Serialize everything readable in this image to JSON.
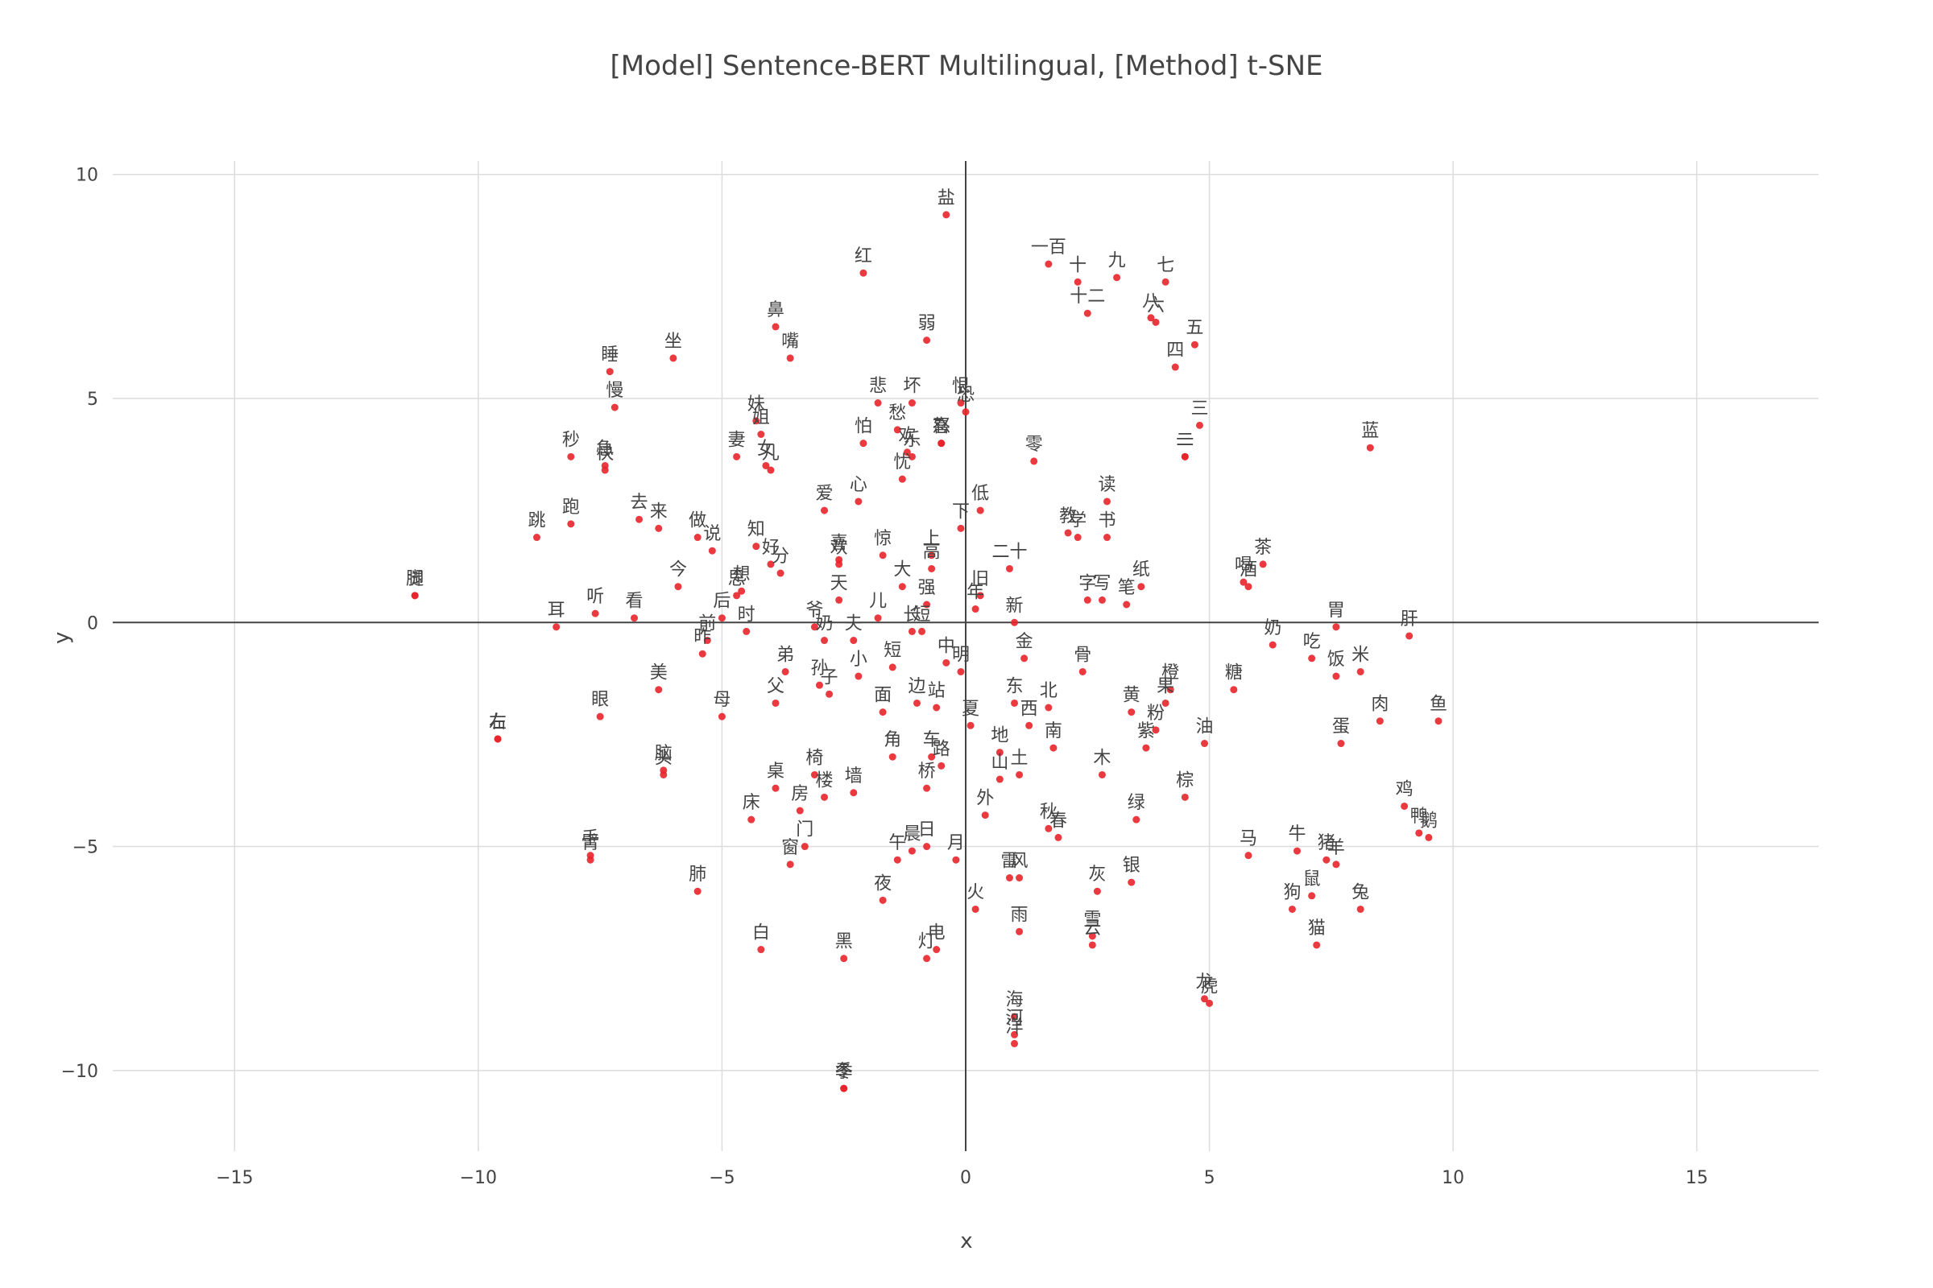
{
  "chart_data": {
    "type": "scatter",
    "title": "[Model] Sentence-BERT Multilingual, [Method] t-SNE",
    "xlabel": "x",
    "ylabel": "y",
    "xlim": [
      -17.5,
      17.5
    ],
    "ylim": [
      -11.8,
      10.3
    ],
    "xticks": [
      -15,
      -10,
      -5,
      0,
      5,
      10,
      15
    ],
    "yticks": [
      -10,
      -5,
      0,
      5,
      10
    ],
    "xtick_labels": [
      "−15",
      "−10",
      "−5",
      "0",
      "5",
      "10",
      "15"
    ],
    "ytick_labels": [
      "−10",
      "−5",
      "0",
      "5",
      "10"
    ],
    "grid": true,
    "zero_lines": true,
    "marker_color": "#e8242a",
    "points": [
      {
        "label": "盐",
        "x": -0.4,
        "y": 9.1
      },
      {
        "label": "红",
        "x": -2.1,
        "y": 7.8
      },
      {
        "label": "一百",
        "x": 1.7,
        "y": 8.0
      },
      {
        "label": "十",
        "x": 2.3,
        "y": 7.6
      },
      {
        "label": "九",
        "x": 3.1,
        "y": 7.7
      },
      {
        "label": "七",
        "x": 4.1,
        "y": 7.6
      },
      {
        "label": "十二",
        "x": 2.5,
        "y": 6.9
      },
      {
        "label": "八",
        "x": 3.8,
        "y": 6.8
      },
      {
        "label": "六",
        "x": 3.9,
        "y": 6.7
      },
      {
        "label": "五",
        "x": 4.7,
        "y": 6.2
      },
      {
        "label": "四",
        "x": 4.3,
        "y": 5.7
      },
      {
        "label": "鼻",
        "x": -3.9,
        "y": 6.6
      },
      {
        "label": "嘴",
        "x": -3.6,
        "y": 5.9
      },
      {
        "label": "弱",
        "x": -0.8,
        "y": 6.3
      },
      {
        "label": "坐",
        "x": -6.0,
        "y": 5.9
      },
      {
        "label": "睡",
        "x": -7.3,
        "y": 5.6
      },
      {
        "label": "慢",
        "x": -7.2,
        "y": 4.8
      },
      {
        "label": "悲",
        "x": -1.8,
        "y": 4.9
      },
      {
        "label": "坏",
        "x": -1.1,
        "y": 4.9
      },
      {
        "label": "恨",
        "x": -0.1,
        "y": 4.9
      },
      {
        "label": "恐",
        "x": 0.0,
        "y": 4.7
      },
      {
        "label": "三",
        "x": 4.8,
        "y": 4.4
      },
      {
        "label": "妹",
        "x": -4.3,
        "y": 4.5
      },
      {
        "label": "姐",
        "x": -4.2,
        "y": 4.2
      },
      {
        "label": "愁",
        "x": -1.4,
        "y": 4.3
      },
      {
        "label": "喜",
        "x": -0.5,
        "y": 4.0
      },
      {
        "label": "怒",
        "x": -0.5,
        "y": 4.0
      },
      {
        "label": "二",
        "x": 4.5,
        "y": 3.7
      },
      {
        "label": "一",
        "x": 4.5,
        "y": 3.7
      },
      {
        "label": "蓝",
        "x": 8.3,
        "y": 3.9
      },
      {
        "label": "秒",
        "x": -8.1,
        "y": 3.7
      },
      {
        "label": "急",
        "x": -7.4,
        "y": 3.5
      },
      {
        "label": "快",
        "x": -7.4,
        "y": 3.4
      },
      {
        "label": "妻",
        "x": -4.7,
        "y": 3.7
      },
      {
        "label": "女",
        "x": -4.1,
        "y": 3.5
      },
      {
        "label": "儿",
        "x": -4.0,
        "y": 3.4
      },
      {
        "label": "怕",
        "x": -2.1,
        "y": 4.0
      },
      {
        "label": "欢",
        "x": -1.2,
        "y": 3.8
      },
      {
        "label": "乐",
        "x": -1.1,
        "y": 3.7
      },
      {
        "label": "忧",
        "x": -1.3,
        "y": 3.2
      },
      {
        "label": "零",
        "x": 1.4,
        "y": 3.6
      },
      {
        "label": "读",
        "x": 2.9,
        "y": 2.7
      },
      {
        "label": "跳",
        "x": -8.8,
        "y": 1.9
      },
      {
        "label": "跑",
        "x": -8.1,
        "y": 2.2
      },
      {
        "label": "去",
        "x": -6.7,
        "y": 2.3
      },
      {
        "label": "来",
        "x": -6.3,
        "y": 2.1
      },
      {
        "label": "做",
        "x": -5.5,
        "y": 1.9
      },
      {
        "label": "说",
        "x": -5.2,
        "y": 1.6
      },
      {
        "label": "爱",
        "x": -2.9,
        "y": 2.5
      },
      {
        "label": "心",
        "x": -2.2,
        "y": 2.7
      },
      {
        "label": "低",
        "x": 0.3,
        "y": 2.5
      },
      {
        "label": "下",
        "x": -0.1,
        "y": 2.1
      },
      {
        "label": "教",
        "x": 2.1,
        "y": 2.0
      },
      {
        "label": "学",
        "x": 2.3,
        "y": 1.9
      },
      {
        "label": "书",
        "x": 2.9,
        "y": 1.9
      },
      {
        "label": "知",
        "x": -4.3,
        "y": 1.7
      },
      {
        "label": "好",
        "x": -4.0,
        "y": 1.3
      },
      {
        "label": "分",
        "x": -3.8,
        "y": 1.1
      },
      {
        "label": "喜",
        "x": -2.6,
        "y": 1.4
      },
      {
        "label": "欢",
        "x": -2.6,
        "y": 1.3
      },
      {
        "label": "惊",
        "x": -1.7,
        "y": 1.5
      },
      {
        "label": "上",
        "x": -0.7,
        "y": 1.5
      },
      {
        "label": "高",
        "x": -0.7,
        "y": 1.2
      },
      {
        "label": "二十",
        "x": 0.9,
        "y": 1.2
      },
      {
        "label": "茶",
        "x": 6.1,
        "y": 1.3
      },
      {
        "label": "喝",
        "x": 5.7,
        "y": 0.9
      },
      {
        "label": "酒",
        "x": 5.8,
        "y": 0.8
      },
      {
        "label": "脚",
        "x": -11.3,
        "y": 0.6
      },
      {
        "label": "腿",
        "x": -11.3,
        "y": 0.6
      },
      {
        "label": "今",
        "x": -5.9,
        "y": 0.8
      },
      {
        "label": "想",
        "x": -4.6,
        "y": 0.7
      },
      {
        "label": "思",
        "x": -4.7,
        "y": 0.6
      },
      {
        "label": "天",
        "x": -2.6,
        "y": 0.5
      },
      {
        "label": "大",
        "x": -1.3,
        "y": 0.8
      },
      {
        "label": "旧",
        "x": 0.3,
        "y": 0.6
      },
      {
        "label": "纸",
        "x": 3.6,
        "y": 0.8
      },
      {
        "label": "字",
        "x": 2.5,
        "y": 0.5
      },
      {
        "label": "写",
        "x": 2.8,
        "y": 0.5
      },
      {
        "label": "笔",
        "x": 3.3,
        "y": 0.4
      },
      {
        "label": "强",
        "x": -0.8,
        "y": 0.4
      },
      {
        "label": "年",
        "x": 0.2,
        "y": 0.3
      },
      {
        "label": "耳",
        "x": -8.4,
        "y": -0.1
      },
      {
        "label": "听",
        "x": -7.6,
        "y": 0.2
      },
      {
        "label": "看",
        "x": -6.8,
        "y": 0.1
      },
      {
        "label": "后",
        "x": -5.0,
        "y": 0.1
      },
      {
        "label": "时",
        "x": -4.5,
        "y": -0.2
      },
      {
        "label": "儿",
        "x": -1.8,
        "y": 0.1
      },
      {
        "label": "长",
        "x": -1.1,
        "y": -0.2
      },
      {
        "label": "短",
        "x": -0.9,
        "y": -0.2
      },
      {
        "label": "新",
        "x": 1.0,
        "y": 0.0
      },
      {
        "label": "胃",
        "x": 7.6,
        "y": -0.1
      },
      {
        "label": "肝",
        "x": 9.1,
        "y": -0.3
      },
      {
        "label": "奶",
        "x": 6.3,
        "y": -0.5
      },
      {
        "label": "吃",
        "x": 7.1,
        "y": -0.8
      },
      {
        "label": "饭",
        "x": 7.6,
        "y": -1.2
      },
      {
        "label": "米",
        "x": 8.1,
        "y": -1.1
      },
      {
        "label": "爷",
        "x": -3.1,
        "y": -0.1
      },
      {
        "label": "奶",
        "x": -2.9,
        "y": -0.4
      },
      {
        "label": "夫",
        "x": -2.3,
        "y": -0.4
      },
      {
        "label": "前",
        "x": -5.3,
        "y": -0.4
      },
      {
        "label": "昨",
        "x": -5.4,
        "y": -0.7
      },
      {
        "label": "中",
        "x": -0.4,
        "y": -0.9
      },
      {
        "label": "明",
        "x": -0.1,
        "y": -1.1
      },
      {
        "label": "金",
        "x": 1.2,
        "y": -0.8
      },
      {
        "label": "骨",
        "x": 2.4,
        "y": -1.1
      },
      {
        "label": "弟",
        "x": -3.7,
        "y": -1.1
      },
      {
        "label": "孙",
        "x": -3.0,
        "y": -1.4
      },
      {
        "label": "子",
        "x": -2.8,
        "y": -1.6
      },
      {
        "label": "小",
        "x": -2.2,
        "y": -1.2
      },
      {
        "label": "短",
        "x": -1.5,
        "y": -1.0
      },
      {
        "label": "美",
        "x": -6.3,
        "y": -1.5
      },
      {
        "label": "父",
        "x": -3.9,
        "y": -1.8
      },
      {
        "label": "面",
        "x": -1.7,
        "y": -2.0
      },
      {
        "label": "边",
        "x": -1.0,
        "y": -1.8
      },
      {
        "label": "站",
        "x": -0.6,
        "y": -1.9
      },
      {
        "label": "夏",
        "x": 0.1,
        "y": -2.3
      },
      {
        "label": "东",
        "x": 1.0,
        "y": -1.8
      },
      {
        "label": "西",
        "x": 1.3,
        "y": -2.3
      },
      {
        "label": "北",
        "x": 1.7,
        "y": -1.9
      },
      {
        "label": "黄",
        "x": 3.4,
        "y": -2.0
      },
      {
        "label": "橙",
        "x": 4.2,
        "y": -1.5
      },
      {
        "label": "果",
        "x": 4.1,
        "y": -1.8
      },
      {
        "label": "粉",
        "x": 3.9,
        "y": -2.4
      },
      {
        "label": "糖",
        "x": 5.5,
        "y": -1.5
      },
      {
        "label": "肉",
        "x": 8.5,
        "y": -2.2
      },
      {
        "label": "鱼",
        "x": 9.7,
        "y": -2.2
      },
      {
        "label": "眼",
        "x": -7.5,
        "y": -2.1
      },
      {
        "label": "母",
        "x": -5.0,
        "y": -2.1
      },
      {
        "label": "左",
        "x": -9.6,
        "y": -2.6
      },
      {
        "label": "右",
        "x": -9.6,
        "y": -2.6
      },
      {
        "label": "地",
        "x": 0.7,
        "y": -2.9
      },
      {
        "label": "南",
        "x": 1.8,
        "y": -2.8
      },
      {
        "label": "紫",
        "x": 3.7,
        "y": -2.8
      },
      {
        "label": "油",
        "x": 4.9,
        "y": -2.7
      },
      {
        "label": "蛋",
        "x": 7.7,
        "y": -2.7
      },
      {
        "label": "脑",
        "x": -6.2,
        "y": -3.3
      },
      {
        "label": "头",
        "x": -6.2,
        "y": -3.4
      },
      {
        "label": "角",
        "x": -1.5,
        "y": -3.0
      },
      {
        "label": "车",
        "x": -0.7,
        "y": -3.0
      },
      {
        "label": "路",
        "x": -0.5,
        "y": -3.2
      },
      {
        "label": "椅",
        "x": -3.1,
        "y": -3.4
      },
      {
        "label": "桌",
        "x": -3.9,
        "y": -3.7
      },
      {
        "label": "楼",
        "x": -2.9,
        "y": -3.9
      },
      {
        "label": "墙",
        "x": -2.3,
        "y": -3.8
      },
      {
        "label": "桥",
        "x": -0.8,
        "y": -3.7
      },
      {
        "label": "山",
        "x": 0.7,
        "y": -3.5
      },
      {
        "label": "土",
        "x": 1.1,
        "y": -3.4
      },
      {
        "label": "木",
        "x": 2.8,
        "y": -3.4
      },
      {
        "label": "棕",
        "x": 4.5,
        "y": -3.9
      },
      {
        "label": "床",
        "x": -4.4,
        "y": -4.4
      },
      {
        "label": "房",
        "x": -3.4,
        "y": -4.2
      },
      {
        "label": "外",
        "x": 0.4,
        "y": -4.3
      },
      {
        "label": "秋",
        "x": 1.7,
        "y": -4.6
      },
      {
        "label": "春",
        "x": 1.9,
        "y": -4.8
      },
      {
        "label": "绿",
        "x": 3.5,
        "y": -4.4
      },
      {
        "label": "鸡",
        "x": 9.0,
        "y": -4.1
      },
      {
        "label": "鸭",
        "x": 9.3,
        "y": -4.7
      },
      {
        "label": "鹅",
        "x": 9.5,
        "y": -4.8
      },
      {
        "label": "门",
        "x": -3.3,
        "y": -5.0
      },
      {
        "label": "窗",
        "x": -3.6,
        "y": -5.4
      },
      {
        "label": "午",
        "x": -1.4,
        "y": -5.3
      },
      {
        "label": "晨",
        "x": -1.1,
        "y": -5.1
      },
      {
        "label": "日",
        "x": -0.8,
        "y": -5.0
      },
      {
        "label": "月",
        "x": -0.2,
        "y": -5.3
      },
      {
        "label": "马",
        "x": 5.8,
        "y": -5.2
      },
      {
        "label": "牛",
        "x": 6.8,
        "y": -5.1
      },
      {
        "label": "猪",
        "x": 7.4,
        "y": -5.3
      },
      {
        "label": "羊",
        "x": 7.6,
        "y": -5.4
      },
      {
        "label": "手",
        "x": -7.7,
        "y": -5.2
      },
      {
        "label": "臂",
        "x": -7.7,
        "y": -5.3
      },
      {
        "label": "肺",
        "x": -5.5,
        "y": -6.0
      },
      {
        "label": "雷",
        "x": 0.9,
        "y": -5.7
      },
      {
        "label": "风",
        "x": 1.1,
        "y": -5.7
      },
      {
        "label": "灰",
        "x": 2.7,
        "y": -6.0
      },
      {
        "label": "银",
        "x": 3.4,
        "y": -5.8
      },
      {
        "label": "鼠",
        "x": 7.1,
        "y": -6.1
      },
      {
        "label": "狗",
        "x": 6.7,
        "y": -6.4
      },
      {
        "label": "兔",
        "x": 8.1,
        "y": -6.4
      },
      {
        "label": "夜",
        "x": -1.7,
        "y": -6.2
      },
      {
        "label": "火",
        "x": 0.2,
        "y": -6.4
      },
      {
        "label": "雨",
        "x": 1.1,
        "y": -6.9
      },
      {
        "label": "雪",
        "x": 2.6,
        "y": -7.0
      },
      {
        "label": "云",
        "x": 2.6,
        "y": -7.2
      },
      {
        "label": "猫",
        "x": 7.2,
        "y": -7.2
      },
      {
        "label": "白",
        "x": -4.2,
        "y": -7.3
      },
      {
        "label": "黑",
        "x": -2.5,
        "y": -7.5
      },
      {
        "label": "灯",
        "x": -0.8,
        "y": -7.5
      },
      {
        "label": "电",
        "x": -0.6,
        "y": -7.3
      },
      {
        "label": "龙",
        "x": 4.9,
        "y": -8.4
      },
      {
        "label": "虎",
        "x": 5.0,
        "y": -8.5
      },
      {
        "label": "海",
        "x": 1.0,
        "y": -8.8
      },
      {
        "label": "河",
        "x": 1.0,
        "y": -9.2
      },
      {
        "label": "洋",
        "x": 1.0,
        "y": -9.4
      },
      {
        "label": "冬",
        "x": -2.5,
        "y": -10.4
      },
      {
        "label": "季",
        "x": -2.5,
        "y": -10.4
      }
    ]
  }
}
